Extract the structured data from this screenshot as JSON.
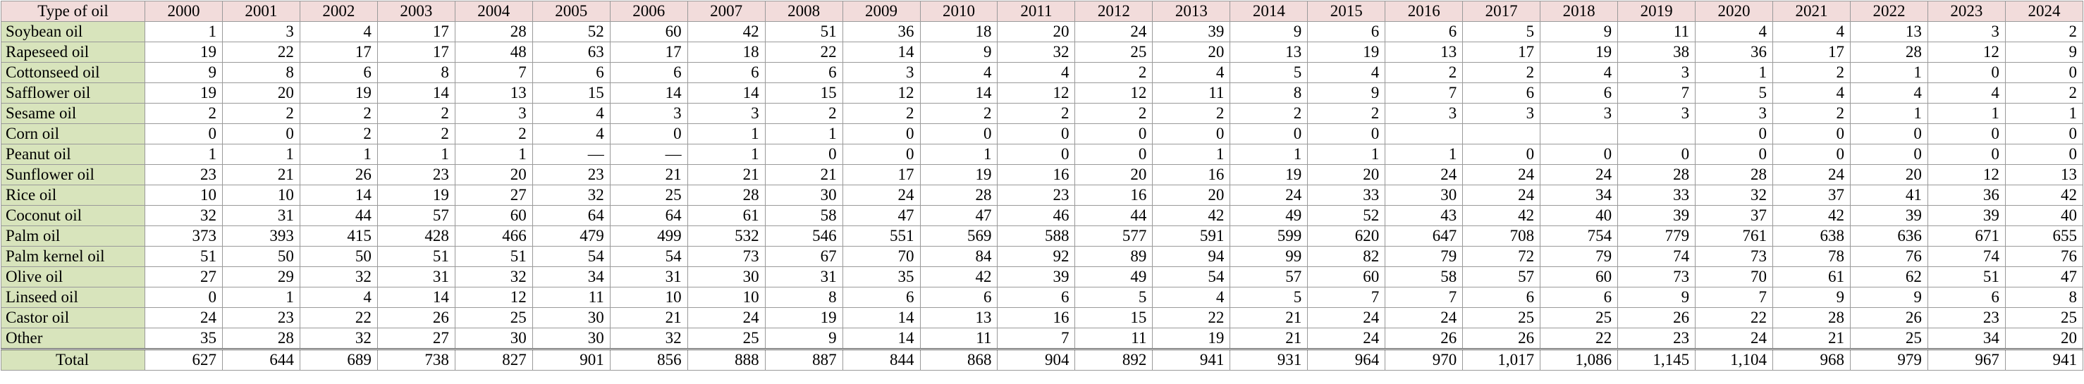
{
  "table": {
    "header": [
      "Type of oil",
      "2000",
      "2001",
      "2002",
      "2003",
      "2004",
      "2005",
      "2006",
      "2007",
      "2008",
      "2009",
      "2010",
      "2011",
      "2012",
      "2013",
      "2014",
      "2015",
      "2016",
      "2017",
      "2018",
      "2019",
      "2020",
      "2021",
      "2022",
      "2023",
      "2024"
    ],
    "rows": [
      [
        "Soybean oil",
        "1",
        "3",
        "4",
        "17",
        "28",
        "52",
        "60",
        "42",
        "51",
        "36",
        "18",
        "20",
        "24",
        "39",
        "9",
        "6",
        "6",
        "5",
        "9",
        "11",
        "4",
        "4",
        "13",
        "3",
        "2"
      ],
      [
        "Rapeseed oil",
        "19",
        "22",
        "17",
        "17",
        "48",
        "63",
        "17",
        "18",
        "22",
        "14",
        "9",
        "32",
        "25",
        "20",
        "13",
        "19",
        "13",
        "17",
        "19",
        "38",
        "36",
        "17",
        "28",
        "12",
        "9"
      ],
      [
        "Cottonseed oil",
        "9",
        "8",
        "6",
        "8",
        "7",
        "6",
        "6",
        "6",
        "6",
        "3",
        "4",
        "4",
        "2",
        "4",
        "5",
        "4",
        "2",
        "2",
        "4",
        "3",
        "1",
        "2",
        "1",
        "0",
        "0"
      ],
      [
        "Safflower oil",
        "19",
        "20",
        "19",
        "14",
        "13",
        "15",
        "14",
        "14",
        "15",
        "12",
        "14",
        "12",
        "12",
        "11",
        "8",
        "9",
        "7",
        "6",
        "6",
        "7",
        "5",
        "4",
        "4",
        "4",
        "2"
      ],
      [
        "Sesame oil",
        "2",
        "2",
        "2",
        "2",
        "3",
        "4",
        "3",
        "3",
        "2",
        "2",
        "2",
        "2",
        "2",
        "2",
        "2",
        "2",
        "3",
        "3",
        "3",
        "3",
        "3",
        "2",
        "1",
        "1",
        "1"
      ],
      [
        "Corn oil",
        "0",
        "0",
        "2",
        "2",
        "2",
        "4",
        "0",
        "1",
        "1",
        "0",
        "0",
        "0",
        "0",
        "0",
        "0",
        "0",
        null,
        null,
        null,
        null,
        "0",
        "0",
        "0",
        "0",
        "0"
      ],
      [
        "Peanut oil",
        "1",
        "1",
        "1",
        "1",
        "1",
        "—",
        "—",
        "1",
        "0",
        "0",
        "1",
        "0",
        "0",
        "1",
        "1",
        "1",
        "1",
        "0",
        "0",
        "0",
        "0",
        "0",
        "0",
        "0",
        "0"
      ],
      [
        "Sunflower oil",
        "23",
        "21",
        "26",
        "23",
        "20",
        "23",
        "21",
        "21",
        "21",
        "17",
        "19",
        "16",
        "20",
        "16",
        "19",
        "20",
        "24",
        "24",
        "24",
        "28",
        "28",
        "24",
        "20",
        "12",
        "13"
      ],
      [
        "Rice oil",
        "10",
        "10",
        "14",
        "19",
        "27",
        "32",
        "25",
        "28",
        "30",
        "24",
        "28",
        "23",
        "16",
        "20",
        "24",
        "33",
        "30",
        "24",
        "34",
        "33",
        "32",
        "37",
        "41",
        "36",
        "42"
      ],
      [
        "Coconut oil",
        "32",
        "31",
        "44",
        "57",
        "60",
        "64",
        "64",
        "61",
        "58",
        "47",
        "47",
        "46",
        "44",
        "42",
        "49",
        "52",
        "43",
        "42",
        "40",
        "39",
        "37",
        "42",
        "39",
        "39",
        "40"
      ],
      [
        "Palm oil",
        "373",
        "393",
        "415",
        "428",
        "466",
        "479",
        "499",
        "532",
        "546",
        "551",
        "569",
        "588",
        "577",
        "591",
        "599",
        "620",
        "647",
        "708",
        "754",
        "779",
        "761",
        "638",
        "636",
        "671",
        "655"
      ],
      [
        "Palm kernel oil",
        "51",
        "50",
        "50",
        "51",
        "51",
        "54",
        "54",
        "73",
        "67",
        "70",
        "84",
        "92",
        "89",
        "94",
        "99",
        "82",
        "79",
        "72",
        "79",
        "74",
        "73",
        "78",
        "76",
        "74",
        "76"
      ],
      [
        "Olive oil",
        "27",
        "29",
        "32",
        "31",
        "32",
        "34",
        "31",
        "30",
        "31",
        "35",
        "42",
        "39",
        "49",
        "54",
        "57",
        "60",
        "58",
        "57",
        "60",
        "73",
        "70",
        "61",
        "62",
        "51",
        "47"
      ],
      [
        "Linseed oil",
        "0",
        "1",
        "4",
        "14",
        "12",
        "11",
        "10",
        "10",
        "8",
        "6",
        "6",
        "6",
        "5",
        "4",
        "5",
        "7",
        "7",
        "6",
        "6",
        "9",
        "7",
        "9",
        "9",
        "6",
        "8"
      ],
      [
        "Castor oil",
        "24",
        "23",
        "22",
        "26",
        "25",
        "30",
        "21",
        "24",
        "19",
        "14",
        "13",
        "16",
        "15",
        "22",
        "21",
        "24",
        "24",
        "25",
        "25",
        "26",
        "22",
        "28",
        "26",
        "23",
        "25"
      ],
      [
        "Other",
        "35",
        "28",
        "32",
        "27",
        "30",
        "30",
        "32",
        "25",
        "9",
        "14",
        "11",
        "7",
        "11",
        "19",
        "21",
        "24",
        "26",
        "26",
        "22",
        "23",
        "24",
        "21",
        "25",
        "34",
        "20"
      ]
    ],
    "total": [
      "Total",
      "627",
      "644",
      "689",
      "738",
      "827",
      "901",
      "856",
      "888",
      "887",
      "844",
      "868",
      "904",
      "892",
      "941",
      "931",
      "964",
      "970",
      "1,017",
      "1,086",
      "1,145",
      "1,104",
      "968",
      "979",
      "967",
      "941"
    ]
  }
}
